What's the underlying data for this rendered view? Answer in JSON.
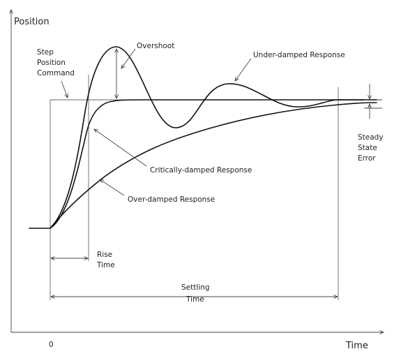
{
  "axes": {
    "y_label": "Position",
    "x_label": "Time",
    "origin_label": "0"
  },
  "labels": {
    "step_command": [
      "Step",
      "Position",
      "Command"
    ],
    "overshoot": "Overshoot",
    "under_damped": "Under-damped Response",
    "critically_damped": "Critically-damped Response",
    "over_damped": "Over-damped Response",
    "steady_state_error": [
      "Steady",
      "State",
      "Error"
    ],
    "rise_time": [
      "Rise",
      "Time"
    ],
    "settling_time": [
      "Settling",
      "Time"
    ]
  }
}
